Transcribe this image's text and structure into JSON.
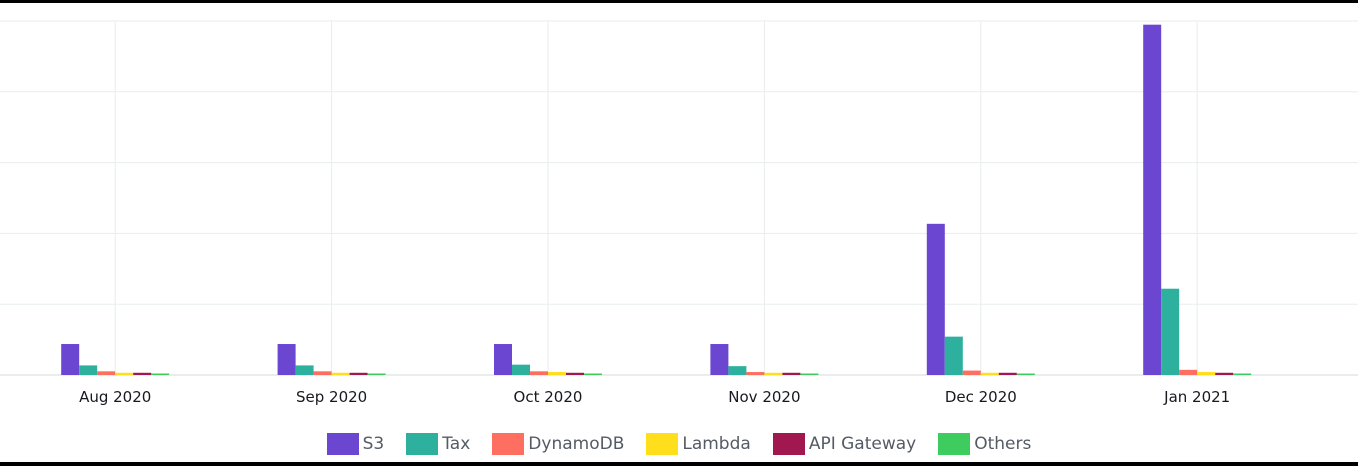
{
  "chart_data": {
    "type": "bar",
    "categories": [
      "Aug 2020",
      "Sep 2020",
      "Oct 2020",
      "Nov 2020",
      "Dec 2020",
      "Jan 2021"
    ],
    "series": [
      {
        "name": "S3",
        "color": "#6b46d1",
        "values": [
          42,
          42,
          42,
          42,
          205,
          475
        ]
      },
      {
        "name": "Tax",
        "color": "#2eb09f",
        "values": [
          13,
          13,
          14,
          12,
          52,
          117
        ]
      },
      {
        "name": "DynamoDB",
        "color": "#ff6f61",
        "values": [
          5,
          5,
          5,
          4,
          6,
          7
        ]
      },
      {
        "name": "Lambda",
        "color": "#ffdf1c",
        "values": [
          3,
          3,
          4,
          3,
          3,
          4
        ]
      },
      {
        "name": "API Gateway",
        "color": "#a1174f",
        "values": [
          3,
          3,
          3,
          3,
          3,
          3
        ]
      },
      {
        "name": "Others",
        "color": "#3ecc5f",
        "values": [
          1,
          1,
          1,
          1,
          1,
          1
        ]
      }
    ],
    "ylim": [
      0,
      480
    ],
    "grid": true,
    "legend_position": "bottom"
  }
}
